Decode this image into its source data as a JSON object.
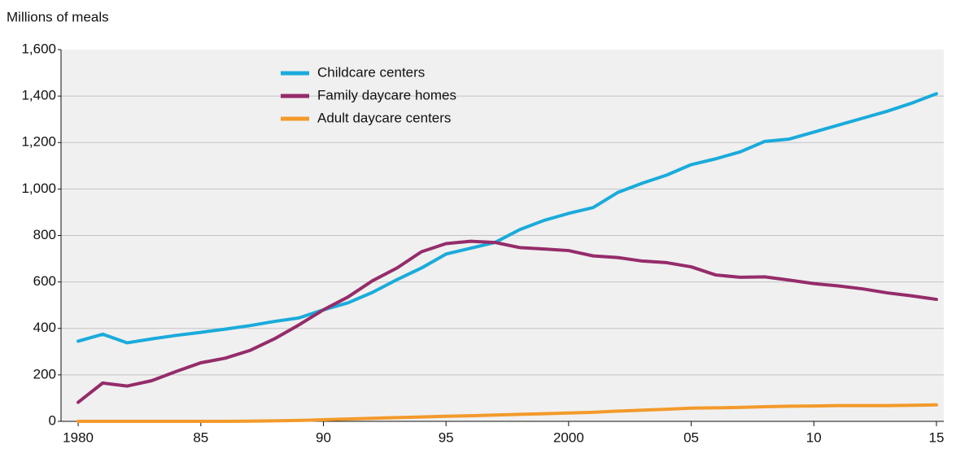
{
  "chart_data": {
    "type": "line",
    "y_axis_label": "Millions of meals",
    "x": [
      1980,
      1981,
      1982,
      1983,
      1984,
      1985,
      1986,
      1987,
      1988,
      1989,
      1990,
      1991,
      1992,
      1993,
      1994,
      1995,
      1996,
      1997,
      1998,
      1999,
      2000,
      2001,
      2002,
      2003,
      2004,
      2005,
      2006,
      2007,
      2008,
      2009,
      2010,
      2011,
      2012,
      2013,
      2014,
      2015
    ],
    "series": [
      {
        "name": "Childcare centers",
        "color": "#1aabdb",
        "values": [
          345,
          375,
          338,
          355,
          370,
          383,
          397,
          412,
          430,
          445,
          480,
          510,
          555,
          610,
          660,
          720,
          745,
          770,
          825,
          865,
          895,
          920,
          985,
          1025,
          1060,
          1105,
          1130,
          1160,
          1205,
          1215,
          1245,
          1275,
          1305,
          1335,
          1370,
          1410
        ]
      },
      {
        "name": "Family daycare homes",
        "color": "#952c6a",
        "values": [
          82,
          165,
          152,
          175,
          215,
          252,
          272,
          305,
          355,
          415,
          480,
          535,
          605,
          660,
          730,
          765,
          775,
          770,
          748,
          742,
          735,
          712,
          705,
          690,
          683,
          665,
          630,
          620,
          622,
          608,
          593,
          583,
          570,
          553,
          540,
          525
        ]
      },
      {
        "name": "Adult daycare centers",
        "color": "#f39a2b",
        "values": [
          0,
          0,
          0,
          0,
          0,
          0,
          0,
          1,
          2,
          4,
          7,
          10,
          13,
          16,
          19,
          22,
          24,
          27,
          30,
          33,
          36,
          39,
          44,
          48,
          52,
          57,
          58,
          60,
          63,
          65,
          66,
          68,
          68,
          68,
          69,
          71
        ]
      }
    ],
    "xlim": [
      1979.3,
      2015.3
    ],
    "xticks": [
      1980,
      {
        "value": 1985,
        "label": "85"
      },
      {
        "value": 1990,
        "label": "90"
      },
      {
        "value": 1995,
        "label": "95"
      },
      2000,
      {
        "value": 2005,
        "label": "05"
      },
      {
        "value": 2010,
        "label": "10"
      },
      {
        "value": 2015,
        "label": "15"
      }
    ],
    "ylim": [
      0,
      1600
    ],
    "yticks": [
      0,
      200,
      400,
      600,
      800,
      {
        "value": 1000,
        "label": "1,000"
      },
      {
        "value": 1200,
        "label": "1,200"
      },
      {
        "value": 1400,
        "label": "1,400"
      },
      {
        "value": 1600,
        "label": "1,600"
      }
    ],
    "grid": true
  }
}
